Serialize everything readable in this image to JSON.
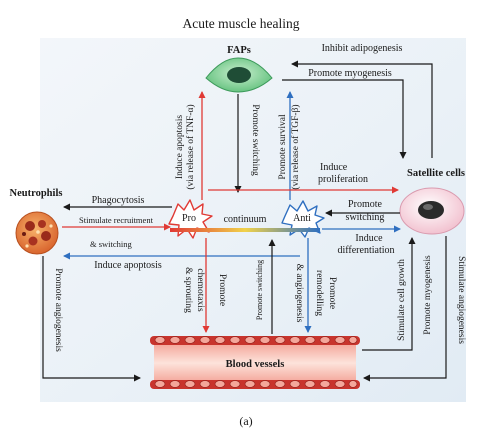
{
  "title": "Acute muscle healing",
  "caption": "(a)",
  "cells": {
    "faps": "FAPs",
    "neutrophils": "Neutrophils",
    "satellite_cells": "Satellite cells",
    "blood_vessels": "Blood vessels"
  },
  "macrophage": {
    "pro": "Pro",
    "continuum": "continuum",
    "anti": "Anti"
  },
  "labels": {
    "inhibit_adipogenesis": "Inhibit adipogenesis",
    "promote_myogenesis_top": "Promote myogenesis",
    "induce_apoptosis_tnf": "Induce apoptosis",
    "via_tnf": "(via release of TNF-α)",
    "promote_switching_faps": "Promote switching",
    "promote_survival": "Promote survival",
    "via_tgf": "(via release of TGF-β)",
    "induce_proliferation_1": "Induce",
    "induce_proliferation_2": "proliferation",
    "phagocytosis": "Phagocytosis",
    "stimulate_recruitment": "Stimulate recruitment",
    "and_switching": "& switching",
    "induce_apoptosis_neu": "Induce apoptosis",
    "promote_switching_sat_1": "Promote",
    "promote_switching_sat_2": "switching",
    "induce_differentiation_1": "Induce",
    "induce_differentiation_2": "differentiation",
    "promote_angiogenesis_left": "Promote angiogenesis",
    "promote_chemotaxis_1": "Promote",
    "promote_chemotaxis_2": "chemotaxis",
    "promote_chemotaxis_3": "& sprouting",
    "promote_switching_vessels": "Promote switching",
    "promote_remodelling_1": "Promote",
    "promote_remodelling_2": "remodelling",
    "promote_remodelling_3": "& angiogenesis",
    "stimulate_cell_growth": "Stimulate cell growth",
    "promote_myogenesis_right": "Promote myogenesis",
    "stimulate_angiogenesis": "Stimulate angiogenesis"
  },
  "colors": {
    "pro": "#e03a35",
    "anti": "#2f6fc0",
    "arrow_black": "#1a1a1a",
    "fap_body": "#8fd39f",
    "fap_nucleus": "#1f4d36",
    "satellite_body": "#f8dbe3",
    "vessel_fill": "#fbd3c8",
    "vessel_cell": "#c8342d",
    "continuum_start": "#e03a35",
    "continuum_mid": "#f1d24a",
    "continuum_end": "#2f6fc0"
  },
  "icons": [
    "fap-cell-icon",
    "neutrophil-cell-icon",
    "satellite-cell-icon",
    "pro-macrophage-icon",
    "anti-macrophage-icon",
    "blood-vessel-icon"
  ]
}
